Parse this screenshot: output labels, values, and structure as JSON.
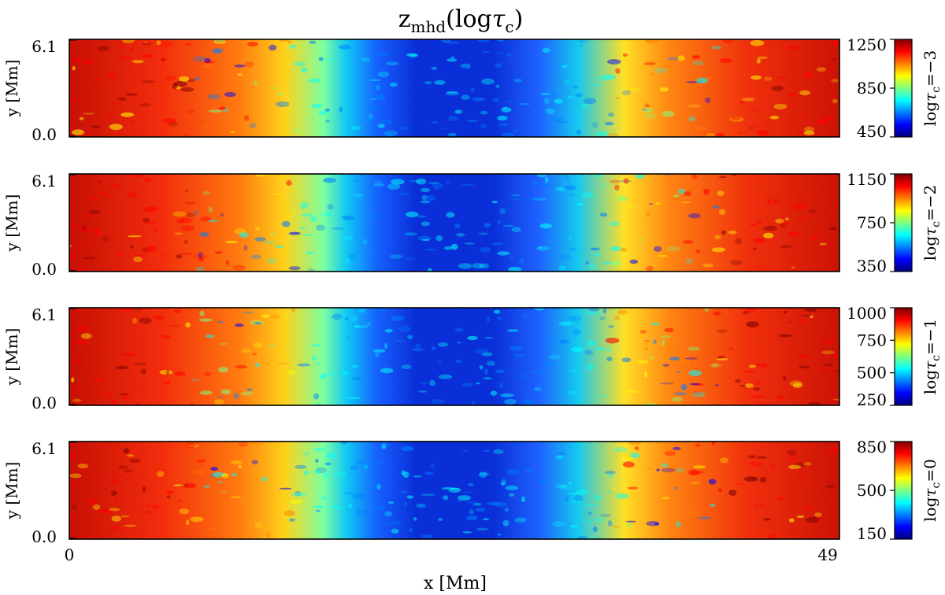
{
  "chart_data": {
    "type": "heatmap",
    "title": {
      "base": "z",
      "sub": "mhd",
      "paren_open": "(log",
      "tau": "τ",
      "tau_sub": "c",
      "paren_close": ")"
    },
    "xlabel": "x [Mm]",
    "ylabel": "y [Mm]",
    "x_ticks": [
      "0",
      "49"
    ],
    "xlim": [
      0,
      49
    ],
    "y_ticks": [
      "6.1",
      "0.0"
    ],
    "ylim": [
      0.0,
      6.1
    ],
    "colormap": "jet",
    "panels": [
      {
        "level": "−3",
        "colorbar_ticks": [
          "1250",
          "850",
          "450"
        ],
        "vmin": 450,
        "vmax": 1250
      },
      {
        "level": "−2",
        "colorbar_ticks": [
          "1150",
          "750",
          "350"
        ],
        "vmin": 350,
        "vmax": 1150
      },
      {
        "level": "−1",
        "colorbar_ticks": [
          "1000",
          "750",
          "500",
          "250"
        ],
        "vmin": 250,
        "vmax": 1000
      },
      {
        "level": "0",
        "colorbar_ticks": [
          "850",
          "500",
          "150"
        ],
        "vmin": 150,
        "vmax": 850
      }
    ]
  },
  "colors": {
    "jet": [
      "#00007f",
      "#0000ff",
      "#007fff",
      "#00ffff",
      "#7fff7f",
      "#ffff00",
      "#ff7f00",
      "#ff0000",
      "#7f0000"
    ],
    "panel_high": "#e81a0a",
    "panel_low": "#0a2fd8"
  }
}
